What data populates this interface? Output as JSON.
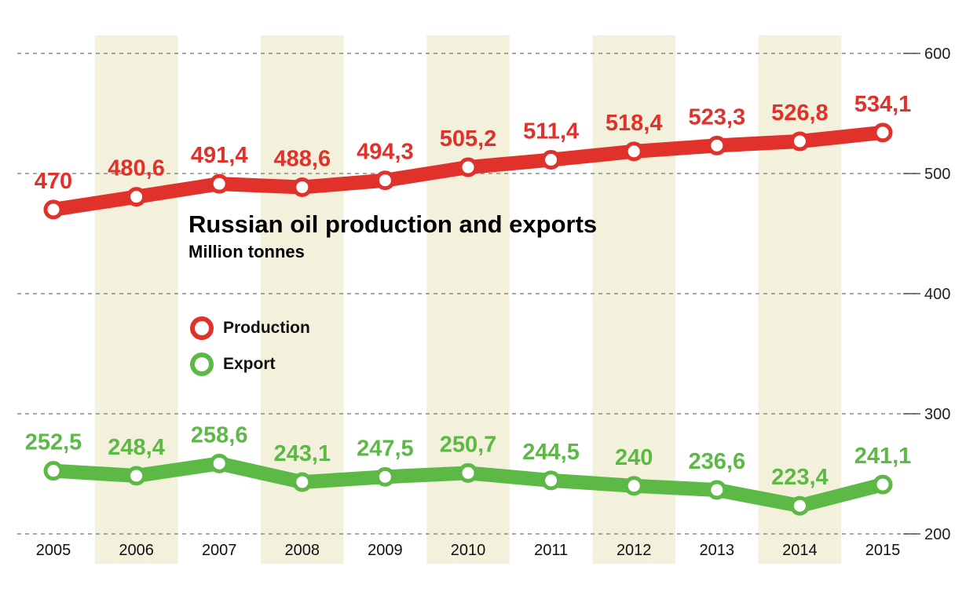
{
  "chart_data": {
    "type": "line",
    "title": "Russian oil production and exports",
    "subtitle": "Million tonnes",
    "x": [
      "2005",
      "2006",
      "2007",
      "2008",
      "2009",
      "2010",
      "2011",
      "2012",
      "2013",
      "2014",
      "2015"
    ],
    "ylim": [
      200,
      600
    ],
    "yticks": [
      200,
      300,
      400,
      500,
      600
    ],
    "grid": true,
    "legend_position": "middle-left",
    "series": [
      {
        "name": "Production",
        "color": "#e0312b",
        "values": [
          470,
          480.6,
          491.4,
          488.6,
          494.3,
          505.2,
          511.4,
          518.4,
          523.3,
          526.8,
          534.1
        ],
        "labels": [
          "470",
          "480,6",
          "491,4",
          "488,6",
          "494,3",
          "505,2",
          "511,4",
          "518,4",
          "523,3",
          "526,8",
          "534,1"
        ]
      },
      {
        "name": "Export",
        "color": "#5db946",
        "values": [
          252.5,
          248.4,
          258.6,
          243.1,
          247.5,
          250.7,
          244.5,
          240,
          236.6,
          223.4,
          241.1
        ],
        "labels": [
          "252,5",
          "248,4",
          "258,6",
          "243,1",
          "247,5",
          "250,7",
          "244,5",
          "240",
          "236,6",
          "223,4",
          "241,1"
        ]
      }
    ],
    "band_color": "#f3f0dc"
  }
}
